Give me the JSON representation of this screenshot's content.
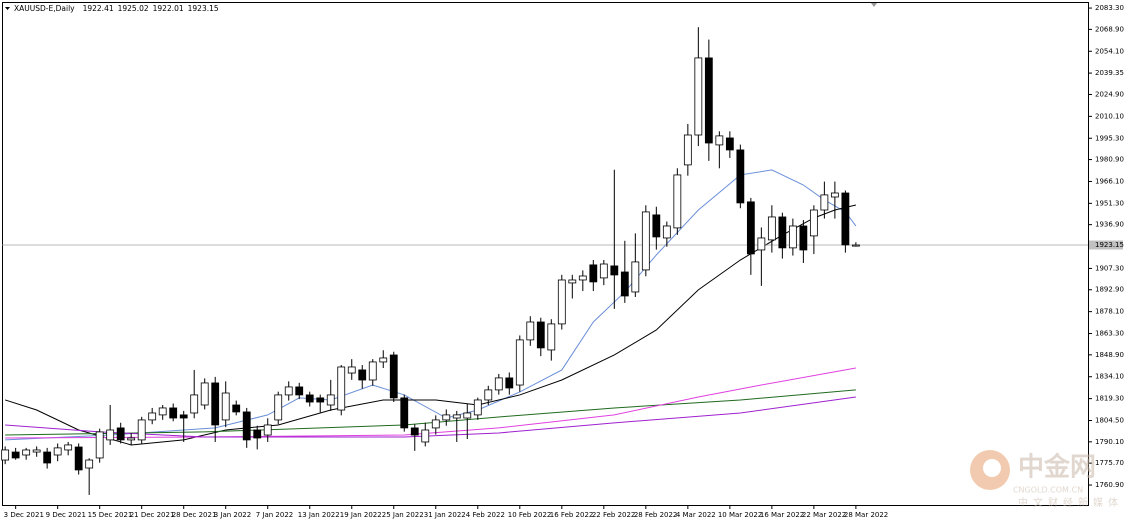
{
  "chart_data": {
    "type": "candlestick",
    "title": "XAUUSD-E,Daily",
    "up_color": "#ffffff",
    "down_color": "#000000",
    "open": [
      1777.8,
      1783.2,
      1781.2,
      1783.2,
      1783.2,
      1781.2,
      1784.6,
      1786.6,
      1772.4,
      1779.2,
      1791.4,
      1799.5,
      1791.4,
      1791.4,
      1804.9,
      1808.3,
      1813.0,
      1808.3,
      1809.6,
      1815.0,
      1829.9,
      1804.9,
      1815.0,
      1810.3,
      1798.1,
      1794.7,
      1804.9,
      1821.8,
      1827.2,
      1821.8,
      1819.8,
      1815.0,
      1811.6,
      1836.6,
      1838.7,
      1831.9,
      1844.1,
      1848.8,
      1819.8,
      1799.5,
      1790.0,
      1799.5,
      1804.9,
      1806.2,
      1806.2,
      1808.3,
      1818.4,
      1825.2,
      1833.3,
      1828.5,
      1859.0,
      1871.1,
      1852.2,
      1869.8,
      1897.5,
      1899.5,
      1909.7,
      1900.9,
      1909.0,
      1904.9,
      1891.4,
      1906.3,
      1943.5,
      1927.9,
      1934.7,
      1977.3,
      1997.5,
      2049.6,
      1990.8,
      1995.5,
      1987.4,
      1952.3,
      1919.8,
      1926.6,
      1942.1,
      1921.2,
      1936.0,
      1929.3,
      1946.8,
      1955.6,
      1958.3,
      1922.41
    ],
    "high": [
      1787,
      1786,
      1786,
      1787,
      1786,
      1789,
      1790,
      1789,
      1779,
      1799,
      1815,
      1803,
      1796,
      1807,
      1813,
      1815,
      1816,
      1811,
      1838.7,
      1833,
      1834,
      1831,
      1818,
      1813,
      1801,
      1806,
      1824,
      1831,
      1830,
      1824,
      1822,
      1832,
      1842,
      1846,
      1842,
      1846,
      1852,
      1851,
      1822,
      1802,
      1803,
      1808,
      1812,
      1811,
      1816,
      1820,
      1828,
      1836,
      1837,
      1862,
      1875,
      1874,
      1873,
      1903,
      1903,
      1906,
      1913,
      1913,
      1974,
      1926,
      1931,
      1950,
      1949,
      1939,
      1975,
      2005,
      2070.4,
      2062,
      2000,
      2000,
      1991,
      1955,
      1935,
      1950,
      1945,
      1941,
      1940,
      1950,
      1966,
      1966,
      1960,
      1925.02
    ],
    "low": [
      1775,
      1778,
      1778,
      1780,
      1772,
      1777,
      1781,
      1768,
      1754.2,
      1776,
      1788,
      1789,
      1788,
      1789,
      1802,
      1805,
      1804,
      1790,
      1806,
      1812,
      1790,
      1800,
      1808,
      1786,
      1785,
      1790,
      1802,
      1818,
      1819,
      1814,
      1810,
      1811,
      1808,
      1832,
      1826,
      1828,
      1840,
      1817,
      1797,
      1784,
      1787,
      1795,
      1801,
      1790,
      1792,
      1805,
      1815,
      1822,
      1822,
      1824,
      1855,
      1848,
      1845,
      1866,
      1887,
      1892,
      1892,
      1896,
      1880,
      1884,
      1888,
      1902,
      1920,
      1922,
      1930,
      1970,
      1990,
      1980,
      1975,
      1982,
      1948,
      1903,
      1895.5,
      1918,
      1914,
      1916,
      1911,
      1917,
      1941,
      1941,
      1918,
      1922.01
    ],
    "close": [
      1784.6,
      1779.2,
      1784.6,
      1784.6,
      1775.8,
      1786.0,
      1788.0,
      1771.1,
      1777.8,
      1796.8,
      1798.1,
      1791.4,
      1792.7,
      1804.9,
      1809.6,
      1813.0,
      1806.2,
      1806.2,
      1821.8,
      1829.9,
      1801.5,
      1823.1,
      1810.3,
      1791.4,
      1792.7,
      1801.5,
      1821.8,
      1827.2,
      1821.8,
      1817.0,
      1817.0,
      1821.8,
      1840.7,
      1840.7,
      1831.9,
      1844.1,
      1846.8,
      1819.8,
      1799.5,
      1794.7,
      1798.1,
      1804.9,
      1808.3,
      1808.3,
      1809.6,
      1818.4,
      1825.2,
      1833.3,
      1826.5,
      1859.0,
      1871.1,
      1853.6,
      1869.8,
      1899.5,
      1899.5,
      1902.2,
      1898.2,
      1910.3,
      1902.9,
      1888.7,
      1911.7,
      1945.5,
      1928.6,
      1936.0,
      1970.5,
      1997.5,
      2049.6,
      1992.1,
      1996.9,
      1987.4,
      1951.6,
      1917.1,
      1927.9,
      1942.1,
      1921.2,
      1936.0,
      1919.8,
      1946.8,
      1957.0,
      1958.3,
      1923.2,
      1923.15
    ],
    "series": [
      {
        "color": "#6a8fd8",
        "x": [
          0,
          10,
          20,
          25,
          28,
          31,
          35,
          38,
          42,
          45,
          49,
          53,
          56,
          59,
          62,
          66,
          70,
          73,
          76,
          78,
          80,
          81
        ],
        "values": [
          1791.4,
          1794.7,
          1799.5,
          1808.3,
          1819.8,
          1818.4,
          1828.5,
          1821.8,
          1806.2,
          1811.6,
          1823.8,
          1838.7,
          1871.1,
          1891.4,
          1916.4,
          1946.8,
          1970.5,
          1973.9,
          1963.7,
          1953.6,
          1945.5,
          1936.0
        ]
      },
      {
        "color": "#000000",
        "x": [
          0,
          3,
          7,
          12,
          17,
          21,
          26,
          31,
          36,
          41,
          45,
          49,
          53,
          58,
          62,
          66,
          70,
          74,
          77,
          79,
          81
        ],
        "values": [
          1818.4,
          1811.6,
          1798.1,
          1788.0,
          1791.4,
          1798.1,
          1801.5,
          1811.6,
          1818.4,
          1818.4,
          1815.0,
          1821.8,
          1831.9,
          1848.8,
          1865.7,
          1892.8,
          1913.0,
          1929.9,
          1941.4,
          1946.8,
          1950.2
        ]
      },
      {
        "color": "#1f6b1f",
        "x": [
          0,
          19,
          38,
          47,
          58,
          70,
          81
        ],
        "values": [
          1794.7,
          1796.8,
          1801.5,
          1806.9,
          1813.0,
          1818.4,
          1825.2
        ]
      },
      {
        "color": "#e040e0",
        "x": [
          0,
          19,
          38,
          47,
          58,
          66,
          72,
          81
        ],
        "values": [
          1792.7,
          1793.4,
          1794.7,
          1799.5,
          1808.3,
          1820.4,
          1828.5,
          1840.0
        ]
      },
      {
        "color": "#a020d0",
        "x": [
          0,
          9,
          19,
          38,
          47,
          58,
          70,
          81
        ],
        "values": [
          1801.5,
          1796.8,
          1793.4,
          1793.4,
          1796.1,
          1802.9,
          1809.6,
          1820.4
        ]
      }
    ],
    "xlim": [
      -0.3,
      103.1
    ],
    "ylim": [
      1747.4,
      2087.4
    ],
    "yticks": [
      {
        "value": 2083.3,
        "label": "2083.30"
      },
      {
        "value": 2068.9,
        "label": "2068.90"
      },
      {
        "value": 2054.1,
        "label": "2054.10"
      },
      2039.35,
      {
        "value": 2024.9,
        "label": "2024.90"
      },
      {
        "value": 2010.1,
        "label": "2010.10"
      },
      {
        "value": 1995.3,
        "label": "1995.30"
      },
      {
        "value": 1980.9,
        "label": "1980.90"
      },
      {
        "value": 1966.1,
        "label": "1966.10"
      },
      {
        "value": 1951.3,
        "label": "1951.30"
      },
      {
        "value": 1936.9,
        "label": "1936.90"
      },
      {
        "value": 1907.3,
        "label": "1907.30"
      },
      {
        "value": 1892.9,
        "label": "1892.90"
      },
      {
        "value": 1878.1,
        "label": "1878.10"
      },
      {
        "value": 1863.3,
        "label": "1863.30"
      },
      {
        "value": 1848.9,
        "label": "1848.90"
      },
      {
        "value": 1834.1,
        "label": "1834.10"
      },
      {
        "value": 1819.3,
        "label": "1819.30"
      },
      {
        "value": 1804.5,
        "label": "1804.50"
      },
      {
        "value": 1790.1,
        "label": "1790.10"
      },
      {
        "value": 1775.7,
        "label": "1775.70"
      },
      {
        "value": 1760.9,
        "label": "1760.90"
      }
    ],
    "xticks": [
      {
        "value": 1,
        "label": "3 Dec 2021"
      },
      {
        "value": 5,
        "label": "9 Dec 2021"
      },
      {
        "value": 9,
        "label": "15 Dec 2021"
      },
      {
        "value": 13,
        "label": "21 Dec 2021"
      },
      {
        "value": 17,
        "label": "28 Dec 2021"
      },
      {
        "value": 21,
        "label": "3 Jan 2022"
      },
      {
        "value": 25,
        "label": "7 Jan 2022"
      },
      {
        "value": 29,
        "label": "13 Jan 2022"
      },
      {
        "value": 33,
        "label": "19 Jan 2022"
      },
      {
        "value": 37,
        "label": "25 Jan 2022"
      },
      {
        "value": 41,
        "label": "31 Jan 2022"
      },
      {
        "value": 45,
        "label": "4 Feb 2022"
      },
      {
        "value": 49,
        "label": "10 Feb 2022"
      },
      {
        "value": 53,
        "label": "16 Feb 2022"
      },
      {
        "value": 57,
        "label": "22 Feb 2022"
      },
      {
        "value": 61,
        "label": "28 Feb 2022"
      },
      {
        "value": 65,
        "label": "4 Mar 2022"
      },
      {
        "value": 69,
        "label": "10 Mar 2022"
      },
      {
        "value": 73,
        "label": "16 Mar 2022"
      },
      {
        "value": 77,
        "label": "22 Mar 2022"
      },
      {
        "value": 81,
        "label": "28 Mar 2022"
      }
    ],
    "watermark": {
      "brand": "中金网",
      "site": "CNGOLD.COM.CN",
      "slogan": "中文财经新媒体"
    }
  }
}
